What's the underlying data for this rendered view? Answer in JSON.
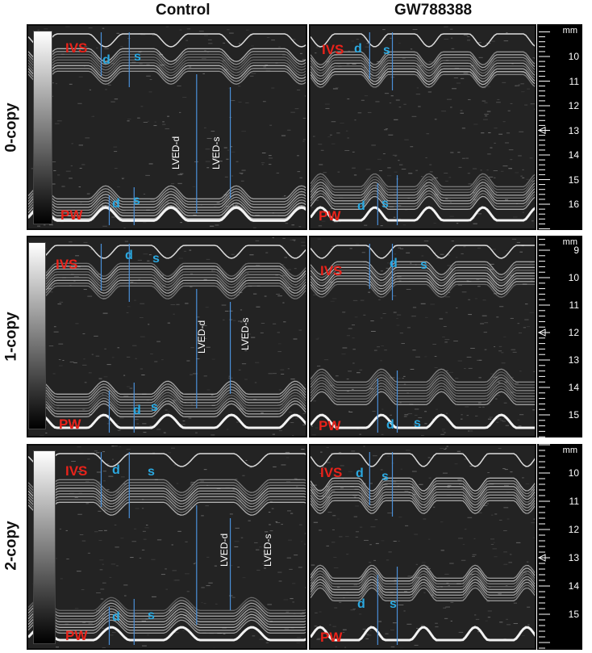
{
  "columns": {
    "left": "Control",
    "right": "GW788388"
  },
  "rows": [
    {
      "label": "0-copy",
      "control": {
        "ivs": "IVS",
        "pw": "PW",
        "d_top": "d",
        "s_top": "s",
        "d_bot": "d",
        "s_bot": "s",
        "lved_d": "LVED-d",
        "lved_s": "LVED-s"
      },
      "treated": {
        "ivs": "IVS",
        "pw": "PW",
        "d_top": "d",
        "s_top": "s",
        "d_bot": "d",
        "s_bot": "s"
      },
      "scale": {
        "unit": "mm",
        "ticks": [
          "10",
          "11",
          "12",
          "13",
          "14",
          "15",
          "16"
        ]
      }
    },
    {
      "label": "1-copy",
      "control": {
        "ivs": "IVS",
        "pw": "PW",
        "d_top": "d",
        "s_top": "s",
        "d_bot": "d",
        "s_bot": "s",
        "lved_d": "LVED-d",
        "lved_s": "LVED-s"
      },
      "treated": {
        "ivs": "IVS",
        "pw": "PW",
        "d_top": "d",
        "s_top": "s",
        "d_bot": "d",
        "s_bot": "s"
      },
      "scale": {
        "unit": "mm",
        "ticks": [
          "9",
          "10",
          "11",
          "12",
          "13",
          "14",
          "15"
        ]
      }
    },
    {
      "label": "2-copy",
      "control": {
        "ivs": "IVS",
        "pw": "PW",
        "d_top": "d",
        "s_top": "s",
        "d_bot": "d",
        "s_bot": "s",
        "lved_d": "LVED-d",
        "lved_s": "LVED-s"
      },
      "treated": {
        "ivs": "IVS",
        "pw": "PW",
        "d_top": "d",
        "s_top": "s",
        "d_bot": "d",
        "s_bot": "s"
      },
      "scale": {
        "unit": "mm",
        "ticks": [
          "10",
          "11",
          "12",
          "13",
          "14",
          "15"
        ]
      }
    }
  ],
  "colors": {
    "label_red": "#e8221a",
    "label_blue": "#2aa8e0",
    "caliper": "#4a8fd8",
    "tissue": "#cfcfcf"
  }
}
